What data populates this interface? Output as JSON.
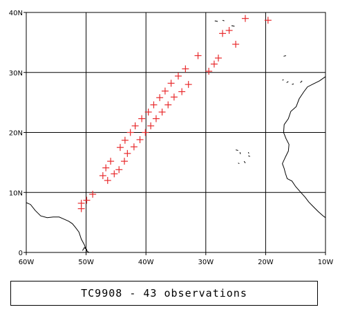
{
  "caption": "TC9908 - 43 observations",
  "colors": {
    "marker": "#e8292b",
    "grid": "#000000",
    "coast": "#000000",
    "background": "#ffffff"
  },
  "map_data": {
    "type": "scatter",
    "projection": "equirectangular",
    "lon_range": [
      -60,
      -10
    ],
    "lat_range": [
      0,
      40
    ],
    "x_ticks": [
      {
        "value": -60,
        "label": "60W"
      },
      {
        "value": -50,
        "label": "50W"
      },
      {
        "value": -40,
        "label": "40W"
      },
      {
        "value": -30,
        "label": "30W"
      },
      {
        "value": -20,
        "label": "20W"
      },
      {
        "value": -10,
        "label": "10W"
      }
    ],
    "y_ticks": [
      {
        "value": 0,
        "label": "0"
      },
      {
        "value": 10,
        "label": "10N"
      },
      {
        "value": 20,
        "label": "20N"
      },
      {
        "value": 30,
        "label": "30N"
      },
      {
        "value": 40,
        "label": "40N"
      }
    ],
    "grid": true,
    "marker": "plus",
    "observations": [
      [
        -50.8,
        7.3
      ],
      [
        -50.8,
        8.2
      ],
      [
        -49.9,
        8.7
      ],
      [
        -48.9,
        9.7
      ],
      [
        -47.2,
        12.8
      ],
      [
        -46.4,
        12.0
      ],
      [
        -46.7,
        14.1
      ],
      [
        -45.9,
        15.2
      ],
      [
        -45.3,
        13.1
      ],
      [
        -44.5,
        13.8
      ],
      [
        -44.3,
        17.5
      ],
      [
        -43.5,
        18.7
      ],
      [
        -43.6,
        15.2
      ],
      [
        -43.1,
        16.5
      ],
      [
        -42.6,
        20.0
      ],
      [
        -41.8,
        21.1
      ],
      [
        -42.0,
        17.6
      ],
      [
        -41.0,
        18.8
      ],
      [
        -40.7,
        22.3
      ],
      [
        -39.6,
        23.4
      ],
      [
        -40.1,
        20.0
      ],
      [
        -39.2,
        21.1
      ],
      [
        -38.7,
        24.6
      ],
      [
        -37.7,
        25.8
      ],
      [
        -38.3,
        22.3
      ],
      [
        -37.3,
        23.4
      ],
      [
        -36.8,
        26.9
      ],
      [
        -35.8,
        28.2
      ],
      [
        -36.3,
        24.6
      ],
      [
        -35.3,
        25.9
      ],
      [
        -34.6,
        29.4
      ],
      [
        -33.4,
        30.6
      ],
      [
        -34.0,
        26.8
      ],
      [
        -32.9,
        28.0
      ],
      [
        -31.3,
        32.8
      ],
      [
        -29.5,
        30.2
      ],
      [
        -28.6,
        31.4
      ],
      [
        -27.9,
        32.4
      ],
      [
        -27.2,
        36.5
      ],
      [
        -26.1,
        37.0
      ],
      [
        -25.0,
        34.7
      ],
      [
        -23.4,
        39.0
      ],
      [
        -19.6,
        38.7
      ]
    ],
    "coastlines": {
      "south_america": [
        [
          -60,
          8.3
        ],
        [
          -59.3,
          8.0
        ],
        [
          -58.5,
          7.0
        ],
        [
          -57.6,
          6.1
        ],
        [
          -56.5,
          5.8
        ],
        [
          -55.5,
          5.9
        ],
        [
          -54.5,
          5.9
        ],
        [
          -53.8,
          5.6
        ],
        [
          -52.9,
          5.2
        ],
        [
          -52.3,
          4.8
        ],
        [
          -51.8,
          4.2
        ],
        [
          -51.2,
          3.4
        ],
        [
          -50.8,
          2.2
        ],
        [
          -50.3,
          1.3
        ],
        [
          -50.1,
          0.7
        ],
        [
          -49.8,
          0.2
        ],
        [
          -49.5,
          0.0
        ]
      ],
      "island_marajo": [
        [
          -50.6,
          0.3
        ],
        [
          -50.3,
          0.8
        ],
        [
          -49.9,
          0.5
        ],
        [
          -50.0,
          0.1
        ]
      ],
      "africa": [
        [
          -10,
          29.3
        ],
        [
          -11.0,
          28.6
        ],
        [
          -12.0,
          28.1
        ],
        [
          -13.0,
          27.6
        ],
        [
          -13.6,
          26.8
        ],
        [
          -14.4,
          25.6
        ],
        [
          -14.9,
          24.3
        ],
        [
          -15.8,
          23.5
        ],
        [
          -16.2,
          22.3
        ],
        [
          -16.9,
          21.3
        ],
        [
          -17.0,
          20.0
        ],
        [
          -16.6,
          19.0
        ],
        [
          -16.1,
          18.0
        ],
        [
          -16.2,
          16.9
        ],
        [
          -16.7,
          15.9
        ],
        [
          -17.2,
          14.8
        ],
        [
          -16.9,
          14.0
        ],
        [
          -16.7,
          13.2
        ],
        [
          -16.4,
          12.3
        ],
        [
          -15.6,
          11.9
        ],
        [
          -15.0,
          11.0
        ],
        [
          -14.2,
          10.1
        ],
        [
          -13.4,
          9.2
        ],
        [
          -12.8,
          8.4
        ],
        [
          -12.0,
          7.6
        ],
        [
          -11.2,
          6.8
        ],
        [
          -10.4,
          6.1
        ],
        [
          -10,
          5.8
        ]
      ],
      "cape_verde": [
        [
          [
            -25.0,
            17.1
          ],
          [
            -24.6,
            17.0
          ]
        ],
        [
          [
            -24.3,
            16.7
          ],
          [
            -24.2,
            16.4
          ]
        ],
        [
          [
            -23.6,
            15.2
          ],
          [
            -23.4,
            14.9
          ]
        ],
        [
          [
            -24.6,
            14.9
          ],
          [
            -24.4,
            14.8
          ]
        ],
        [
          [
            -22.9,
            16.7
          ],
          [
            -22.8,
            16.5
          ]
        ],
        [
          [
            -22.9,
            16.1
          ],
          [
            -22.6,
            16.0
          ]
        ]
      ],
      "canaries": [
        [
          [
            -16.5,
            28.3
          ],
          [
            -16.2,
            28.5
          ]
        ],
        [
          [
            -15.6,
            28.0
          ],
          [
            -15.3,
            28.1
          ]
        ],
        [
          [
            -14.2,
            28.3
          ],
          [
            -13.9,
            28.6
          ]
        ],
        [
          [
            -17.2,
            28.7
          ],
          [
            -17.0,
            28.8
          ]
        ]
      ],
      "azores": [
        [
          [
            -28.5,
            38.6
          ],
          [
            -28.0,
            38.5
          ]
        ],
        [
          [
            -27.2,
            38.7
          ],
          [
            -26.9,
            38.6
          ]
        ],
        [
          [
            -25.7,
            37.8
          ],
          [
            -25.2,
            37.7
          ]
        ]
      ],
      "madeira": [
        [
          [
            -17.0,
            32.7
          ],
          [
            -16.6,
            32.8
          ]
        ]
      ]
    }
  }
}
